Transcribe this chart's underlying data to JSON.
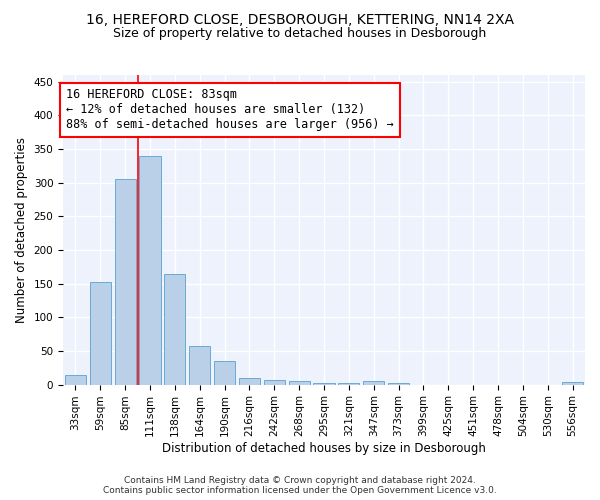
{
  "title_line1": "16, HEREFORD CLOSE, DESBOROUGH, KETTERING, NN14 2XA",
  "title_line2": "Size of property relative to detached houses in Desborough",
  "xlabel": "Distribution of detached houses by size in Desborough",
  "ylabel": "Number of detached properties",
  "bar_color": "#bad0e8",
  "bar_edge_color": "#6aaad4",
  "bg_color": "#edf2fc",
  "grid_color": "#ffffff",
  "categories": [
    "33sqm",
    "59sqm",
    "85sqm",
    "111sqm",
    "138sqm",
    "164sqm",
    "190sqm",
    "216sqm",
    "242sqm",
    "268sqm",
    "295sqm",
    "321sqm",
    "347sqm",
    "373sqm",
    "399sqm",
    "425sqm",
    "451sqm",
    "478sqm",
    "504sqm",
    "530sqm",
    "556sqm"
  ],
  "values": [
    15,
    153,
    305,
    340,
    165,
    57,
    35,
    10,
    7,
    5,
    3,
    2,
    5,
    2,
    0,
    0,
    0,
    0,
    0,
    0,
    4
  ],
  "red_line_x": 2.5,
  "annotation_text": "16 HEREFORD CLOSE: 83sqm\n← 12% of detached houses are smaller (132)\n88% of semi-detached houses are larger (956) →",
  "footnote": "Contains HM Land Registry data © Crown copyright and database right 2024.\nContains public sector information licensed under the Open Government Licence v3.0.",
  "ylim": [
    0,
    460
  ],
  "yticks": [
    0,
    50,
    100,
    150,
    200,
    250,
    300,
    350,
    400,
    450
  ],
  "title_fontsize": 10,
  "subtitle_fontsize": 9,
  "xlabel_fontsize": 8.5,
  "ylabel_fontsize": 8.5,
  "tick_fontsize": 7.5,
  "annotation_fontsize": 8.5,
  "footnote_fontsize": 6.5
}
